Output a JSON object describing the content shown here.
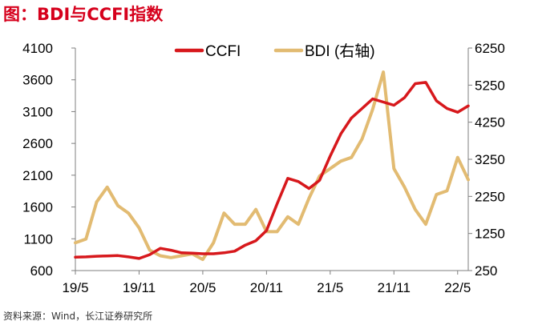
{
  "figure_title": "图：BDI与CCFI指数",
  "source_note": "资料来源：Wind，长江证券研究所",
  "chart_data": {
    "type": "line",
    "x_tick_labels": [
      "19/5",
      "19/11",
      "20/5",
      "20/11",
      "21/5",
      "21/11",
      "22/5"
    ],
    "x_range": [
      "2019-05",
      "2022-06"
    ],
    "y_left": {
      "ticks": [
        600,
        1100,
        1600,
        2100,
        2600,
        3100,
        3600,
        4100
      ],
      "range": [
        600,
        4100
      ]
    },
    "y_right": {
      "ticks": [
        250,
        1250,
        2250,
        3250,
        4250,
        5250,
        6250
      ],
      "range": [
        250,
        6250
      ]
    },
    "grid": false,
    "legend_position": "top-center",
    "colors": {
      "ccfi": "#d7181c",
      "bdi": "#e2bb72",
      "title": "#d6001c"
    },
    "series": [
      {
        "name": "CCFI",
        "axis": "left",
        "dates": [
          "2019-05",
          "2019-06",
          "2019-07",
          "2019-08",
          "2019-09",
          "2019-10",
          "2019-11",
          "2019-12",
          "2020-01",
          "2020-02",
          "2020-03",
          "2020-04",
          "2020-05",
          "2020-06",
          "2020-07",
          "2020-08",
          "2020-09",
          "2020-10",
          "2020-11",
          "2020-12",
          "2021-01",
          "2021-02",
          "2021-03",
          "2021-04",
          "2021-05",
          "2021-06",
          "2021-07",
          "2021-08",
          "2021-09",
          "2021-10",
          "2021-11",
          "2021-12",
          "2022-01",
          "2022-02",
          "2022-03",
          "2022-04",
          "2022-05",
          "2022-06"
        ],
        "values": [
          810,
          815,
          825,
          830,
          835,
          815,
          790,
          850,
          950,
          920,
          880,
          875,
          865,
          865,
          880,
          905,
          1000,
          1070,
          1230,
          1650,
          2050,
          2000,
          1890,
          2020,
          2400,
          2750,
          3000,
          3150,
          3300,
          3250,
          3200,
          3320,
          3540,
          3560,
          3270,
          3150,
          3090,
          3190
        ]
      },
      {
        "name": "BDI (右轴)",
        "axis": "right",
        "dates": [
          "2019-05",
          "2019-06",
          "2019-07",
          "2019-08",
          "2019-09",
          "2019-10",
          "2019-11",
          "2019-12",
          "2020-01",
          "2020-02",
          "2020-03",
          "2020-04",
          "2020-05",
          "2020-06",
          "2020-07",
          "2020-08",
          "2020-09",
          "2020-10",
          "2020-11",
          "2020-12",
          "2021-01",
          "2021-02",
          "2021-03",
          "2021-04",
          "2021-05",
          "2021-06",
          "2021-07",
          "2021-08",
          "2021-09",
          "2021-10",
          "2021-11",
          "2021-12",
          "2022-01",
          "2022-02",
          "2022-03",
          "2022-04",
          "2022-05",
          "2022-06"
        ],
        "values": [
          1000,
          1100,
          2100,
          2500,
          2000,
          1800,
          1400,
          800,
          650,
          600,
          650,
          700,
          550,
          1000,
          1800,
          1500,
          1500,
          1900,
          1300,
          1300,
          1700,
          1500,
          2200,
          2800,
          3000,
          3200,
          3300,
          3800,
          4600,
          5600,
          3000,
          2500,
          1900,
          1500,
          2300,
          2400,
          3300,
          2700
        ]
      }
    ]
  }
}
